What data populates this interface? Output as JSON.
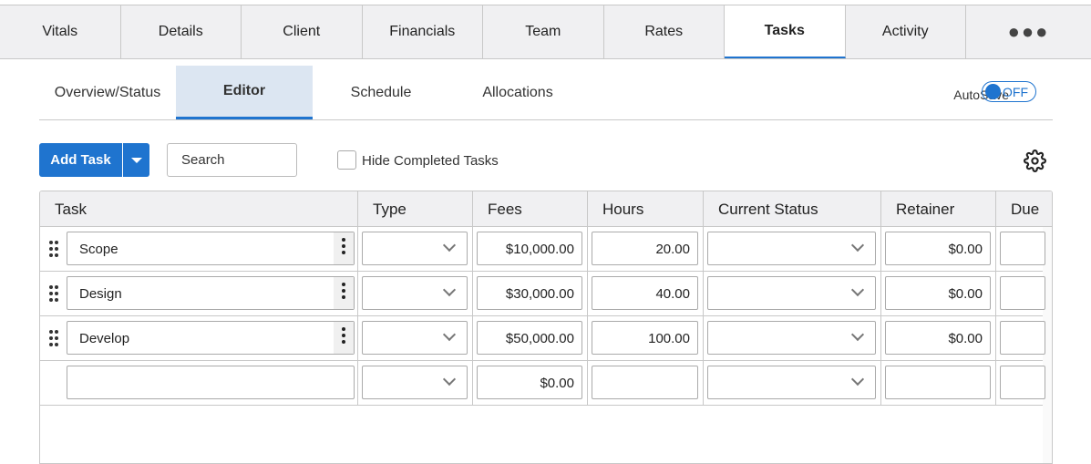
{
  "tabs": [
    {
      "label": "Vitals"
    },
    {
      "label": "Details"
    },
    {
      "label": "Client"
    },
    {
      "label": "Financials"
    },
    {
      "label": "Team"
    },
    {
      "label": "Rates"
    },
    {
      "label": "Tasks",
      "active": true
    },
    {
      "label": "Activity"
    },
    {
      "label": "●●●"
    }
  ],
  "subtabs": [
    {
      "label": "Overview/Status"
    },
    {
      "label": "Editor",
      "active": true
    },
    {
      "label": "Schedule"
    },
    {
      "label": "Allocations"
    }
  ],
  "autosave": {
    "label": "AutoSave",
    "state": "OFF"
  },
  "toolbar": {
    "add_task": "Add Task",
    "search_placeholder": "Search",
    "hide_completed": "Hide Completed Tasks"
  },
  "accent": "#1f74cf",
  "columns": [
    "Task",
    "Type",
    "Fees",
    "Hours",
    "Current Status",
    "Retainer",
    "Due"
  ],
  "rows": [
    {
      "task": "Scope",
      "type": "",
      "fees": "$10,000.00",
      "hours": "20.00",
      "status": "",
      "retainer": "$0.00"
    },
    {
      "task": "Design",
      "type": "",
      "fees": "$30,000.00",
      "hours": "40.00",
      "status": "",
      "retainer": "$0.00"
    },
    {
      "task": "Develop",
      "type": "",
      "fees": "$50,000.00",
      "hours": "100.00",
      "status": "",
      "retainer": "$0.00"
    },
    {
      "task": "",
      "type": "",
      "fees": "$0.00",
      "hours": "",
      "status": "",
      "retainer": ""
    }
  ]
}
